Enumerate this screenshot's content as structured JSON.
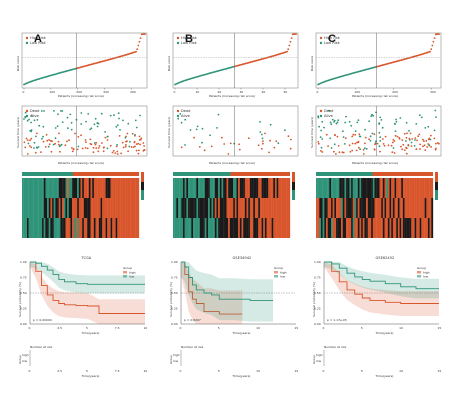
{
  "colors": {
    "high": "#d9552b",
    "low": "#2f9479",
    "dark": "#111111",
    "mid": "#1a1a1a"
  },
  "panels": [
    {
      "letter": "A",
      "risk": {
        "x_max": 450,
        "ticks": [
          0,
          100,
          200,
          300,
          400
        ],
        "cut": 196,
        "ylabel": "Risk score",
        "xlabel": "Patients (increasing risk score)",
        "legend": [
          "High risk",
          "Low Risk"
        ]
      },
      "surv": {
        "ylabel": "Survival time (years)",
        "xlabel": "Patients (increasing risk score)",
        "legend": [
          "Dead",
          "Alive"
        ]
      },
      "heat_labels": [
        "",
        "",
        ""
      ],
      "km": {
        "title": "TCGA",
        "p_value": "p = 0.00000",
        "x_ticks": [
          "0",
          "2.5",
          "5",
          "7.5",
          "10"
        ],
        "x_max": 10,
        "y_ticks": [
          "0.00",
          "0.25",
          "0.50",
          "0.75",
          "1.00"
        ],
        "ylabel": "Survival probability (%)",
        "xlabel": "Time(years)",
        "legend_title": "Group",
        "legend": [
          "high",
          "low"
        ],
        "risk_title": "Number at risk",
        "risk_ylabel": "Group",
        "risk_rows": [
          "high",
          "low"
        ]
      }
    },
    {
      "letter": "B",
      "risk": {
        "x_max": 55,
        "ticks": [
          0,
          10,
          20,
          30,
          40,
          50
        ],
        "cut": 27,
        "ylabel": "Risk score",
        "xlabel": "Patients (increasing risk score)",
        "legend": [
          "High risk",
          "Low Risk"
        ]
      },
      "surv": {
        "ylabel": "Survival time (years)",
        "xlabel": "Patients (increasing risk score)",
        "legend": [
          "Dead",
          "Alive"
        ]
      },
      "heat_labels": [
        "",
        "",
        ""
      ],
      "km": {
        "title": "GSE34942",
        "p_value": "p = 0.8407",
        "x_ticks": [
          "0",
          "5",
          "10",
          "15"
        ],
        "x_max": 15,
        "y_ticks": [
          "0.00",
          "0.25",
          "0.50",
          "0.75",
          "1.00"
        ],
        "ylabel": "Survival probability (%)",
        "xlabel": "Time(years)",
        "legend_title": "Group",
        "legend": [
          "high",
          "low"
        ],
        "risk_title": "Number at risk",
        "risk_ylabel": "Group",
        "risk_rows": [
          "high",
          "low"
        ]
      }
    },
    {
      "letter": "C",
      "risk": {
        "x_max": 320,
        "ticks": [
          0,
          100,
          200,
          300
        ],
        "cut": 155,
        "ylabel": "Risk score",
        "xlabel": "Patients (increasing risk score)",
        "legend": [
          "High risk",
          "Low Risk"
        ]
      },
      "surv": {
        "ylabel": "Survival time (years)",
        "xlabel": "Patients (increasing risk score)",
        "legend": [
          "Dead",
          "Alive"
        ]
      },
      "heat_labels": [
        "",
        "",
        ""
      ],
      "km": {
        "title": "GSE62452",
        "p_value": "p = 1.17e-05",
        "x_ticks": [
          "0",
          "5",
          "10",
          "15"
        ],
        "x_max": 15,
        "y_ticks": [
          "0.00",
          "0.25",
          "0.50",
          "0.75",
          "1.00"
        ],
        "ylabel": "Survival probability (%)",
        "xlabel": "Time(years)",
        "legend_title": "Group",
        "legend": [
          "high",
          "low"
        ],
        "risk_title": "Number at risk",
        "risk_ylabel": "Group",
        "risk_rows": [
          "high",
          "low"
        ]
      }
    }
  ],
  "chart_data": [
    {
      "type": "line",
      "title": "TCGA",
      "xlabel": "Time(years)",
      "ylabel": "Survival probability (%)",
      "xlim": [
        0,
        10
      ],
      "ylim": [
        0,
        1
      ],
      "series": [
        {
          "name": "high",
          "x": [
            0,
            0.5,
            1,
            1.5,
            2,
            2.5,
            3,
            4,
            5,
            6,
            8,
            10
          ],
          "y": [
            1,
            0.85,
            0.62,
            0.47,
            0.38,
            0.33,
            0.31,
            0.3,
            0.29,
            0.17,
            0.17,
            0.17
          ]
        },
        {
          "name": "low",
          "x": [
            0,
            0.5,
            1,
            1.5,
            2,
            2.5,
            3,
            4,
            5,
            7,
            10
          ],
          "y": [
            1,
            0.98,
            0.93,
            0.87,
            0.8,
            0.72,
            0.68,
            0.65,
            0.64,
            0.64,
            0.64
          ]
        }
      ]
    },
    {
      "type": "line",
      "title": "GSE34942",
      "xlabel": "Time(years)",
      "ylabel": "Survival probability (%)",
      "xlim": [
        0,
        15
      ],
      "ylim": [
        0,
        1
      ],
      "series": [
        {
          "name": "high",
          "x": [
            0,
            0.5,
            1,
            1.5,
            2,
            3,
            4,
            5,
            7,
            8
          ],
          "y": [
            1,
            0.8,
            0.52,
            0.4,
            0.33,
            0.2,
            0.2,
            0.16,
            0.16,
            0.16
          ]
        },
        {
          "name": "low",
          "x": [
            0,
            0.5,
            1,
            1.5,
            2,
            3,
            4,
            5,
            7,
            9,
            12
          ],
          "y": [
            1,
            0.92,
            0.75,
            0.63,
            0.55,
            0.5,
            0.47,
            0.4,
            0.4,
            0.38,
            0.38
          ]
        }
      ]
    },
    {
      "type": "line",
      "title": "GSE62452",
      "xlabel": "Time(years)",
      "ylabel": "Survival probability (%)",
      "xlim": [
        0,
        15
      ],
      "ylim": [
        0,
        1
      ],
      "series": [
        {
          "name": "high",
          "x": [
            0,
            1,
            2,
            3,
            4,
            5,
            6,
            8,
            10,
            12,
            15
          ],
          "y": [
            1,
            0.85,
            0.68,
            0.55,
            0.48,
            0.42,
            0.38,
            0.35,
            0.33,
            0.33,
            0.33
          ]
        },
        {
          "name": "low",
          "x": [
            0,
            1,
            2,
            3,
            4,
            5,
            6,
            8,
            10,
            12,
            15
          ],
          "y": [
            1,
            0.97,
            0.9,
            0.82,
            0.76,
            0.72,
            0.69,
            0.65,
            0.6,
            0.57,
            0.57
          ]
        }
      ]
    }
  ]
}
